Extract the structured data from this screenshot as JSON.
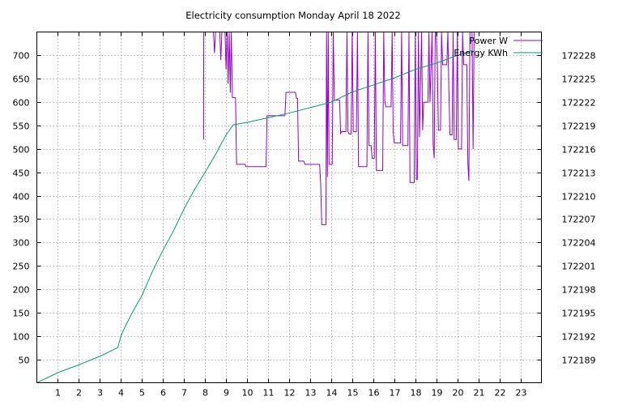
{
  "chart_data": {
    "type": "line",
    "title": "Electricity consumption Monday April 18 2022",
    "xlabel": "",
    "ylabel": "",
    "y2label": "",
    "xlim": [
      0,
      24
    ],
    "ylim": [
      0,
      750
    ],
    "y2lim": [
      172186,
      172231
    ],
    "x_ticks": [
      1,
      2,
      3,
      4,
      5,
      6,
      7,
      8,
      9,
      10,
      11,
      12,
      13,
      14,
      15,
      16,
      17,
      18,
      19,
      20,
      21,
      22,
      23
    ],
    "y_ticks": [
      50,
      100,
      150,
      200,
      250,
      300,
      350,
      400,
      450,
      500,
      550,
      600,
      650,
      700
    ],
    "y2_ticks": [
      172189,
      172192,
      172195,
      172198,
      172201,
      172204,
      172207,
      172210,
      172213,
      172216,
      172219,
      172222,
      172225,
      172228
    ],
    "grid": true,
    "legend_position": "top-right",
    "series": [
      {
        "name": "Power W",
        "axis": "y",
        "color": "#9400d3",
        "points": [
          [
            7.93,
            520
          ],
          [
            7.94,
            750
          ],
          [
            7.96,
            750
          ],
          [
            8.4,
            750
          ],
          [
            8.45,
            705
          ],
          [
            8.5,
            750
          ],
          [
            8.7,
            750
          ],
          [
            8.75,
            690
          ],
          [
            8.8,
            750
          ],
          [
            8.95,
            750
          ],
          [
            9.0,
            670
          ],
          [
            9.05,
            750
          ],
          [
            9.1,
            640
          ],
          [
            9.15,
            750
          ],
          [
            9.2,
            620
          ],
          [
            9.25,
            750
          ],
          [
            9.3,
            610
          ],
          [
            9.45,
            610
          ],
          [
            9.5,
            467
          ],
          [
            9.9,
            467
          ],
          [
            9.95,
            462
          ],
          [
            10.9,
            462
          ],
          [
            10.95,
            571
          ],
          [
            11.8,
            571
          ],
          [
            11.85,
            621
          ],
          [
            12.3,
            621
          ],
          [
            12.35,
            608
          ],
          [
            12.4,
            608
          ],
          [
            12.45,
            474
          ],
          [
            12.7,
            474
          ],
          [
            12.75,
            467
          ],
          [
            13.45,
            467
          ],
          [
            13.5,
            425
          ],
          [
            13.55,
            338
          ],
          [
            13.75,
            338
          ],
          [
            13.78,
            750
          ],
          [
            13.82,
            440
          ],
          [
            13.86,
            750
          ],
          [
            13.9,
            467
          ],
          [
            14.05,
            467
          ],
          [
            14.1,
            750
          ],
          [
            14.15,
            604
          ],
          [
            14.4,
            604
          ],
          [
            14.45,
            533
          ],
          [
            14.5,
            537
          ],
          [
            14.7,
            537
          ],
          [
            14.75,
            750
          ],
          [
            14.8,
            537
          ],
          [
            14.85,
            532
          ],
          [
            14.95,
            532
          ],
          [
            15.0,
            750
          ],
          [
            15.05,
            537
          ],
          [
            15.2,
            537
          ],
          [
            15.25,
            750
          ],
          [
            15.3,
            462
          ],
          [
            15.7,
            462
          ],
          [
            15.75,
            750
          ],
          [
            15.8,
            507
          ],
          [
            15.9,
            507
          ],
          [
            15.95,
            480
          ],
          [
            16.05,
            480
          ],
          [
            16.1,
            750
          ],
          [
            16.15,
            454
          ],
          [
            16.45,
            454
          ],
          [
            16.5,
            750
          ],
          [
            16.55,
            603
          ],
          [
            16.6,
            590
          ],
          [
            16.85,
            590
          ],
          [
            16.9,
            750
          ],
          [
            16.95,
            535
          ],
          [
            17.0,
            513
          ],
          [
            17.3,
            513
          ],
          [
            17.35,
            750
          ],
          [
            17.4,
            507
          ],
          [
            17.65,
            507
          ],
          [
            17.7,
            750
          ],
          [
            17.75,
            428
          ],
          [
            17.95,
            428
          ],
          [
            18.0,
            750
          ],
          [
            18.05,
            435
          ],
          [
            18.1,
            435
          ],
          [
            18.15,
            750
          ],
          [
            18.2,
            525
          ],
          [
            18.3,
            750
          ],
          [
            18.35,
            540
          ],
          [
            18.4,
            600
          ],
          [
            18.6,
            600
          ],
          [
            18.65,
            750
          ],
          [
            18.7,
            600
          ],
          [
            18.8,
            750
          ],
          [
            18.85,
            510
          ],
          [
            18.9,
            480
          ],
          [
            18.95,
            750
          ],
          [
            19.0,
            750
          ],
          [
            19.05,
            680
          ],
          [
            19.1,
            540
          ],
          [
            19.2,
            540
          ],
          [
            19.25,
            750
          ],
          [
            19.3,
            680
          ],
          [
            19.5,
            680
          ],
          [
            19.55,
            750
          ],
          [
            19.6,
            620
          ],
          [
            19.65,
            530
          ],
          [
            19.75,
            530
          ],
          [
            19.8,
            750
          ],
          [
            19.85,
            520
          ],
          [
            19.95,
            520
          ],
          [
            20.0,
            750
          ],
          [
            20.05,
            500
          ],
          [
            20.2,
            500
          ],
          [
            20.25,
            750
          ],
          [
            20.3,
            680
          ],
          [
            20.45,
            680
          ],
          [
            20.5,
            470
          ],
          [
            20.55,
            432
          ],
          [
            20.6,
            750
          ],
          [
            20.7,
            750
          ],
          [
            20.75,
            500
          ],
          [
            20.8,
            750
          ]
        ]
      },
      {
        "name": "Energy KWh",
        "axis": "y2",
        "color": "#009e73",
        "points": [
          [
            0.0,
            172186.0
          ],
          [
            1.0,
            172187.3
          ],
          [
            2.0,
            172188.3
          ],
          [
            3.0,
            172189.4
          ],
          [
            3.85,
            172190.5
          ],
          [
            4.0,
            172192.0
          ],
          [
            4.2,
            172193.2
          ],
          [
            4.5,
            172194.8
          ],
          [
            5.0,
            172197.2
          ],
          [
            5.5,
            172200.3
          ],
          [
            6.0,
            172203.0
          ],
          [
            6.5,
            172205.5
          ],
          [
            7.0,
            172208.3
          ],
          [
            7.5,
            172210.8
          ],
          [
            8.0,
            172213.0
          ],
          [
            8.5,
            172215.3
          ],
          [
            9.0,
            172217.8
          ],
          [
            9.35,
            172219.1
          ],
          [
            10.0,
            172219.4
          ],
          [
            11.0,
            172220.0
          ],
          [
            12.0,
            172220.6
          ],
          [
            13.0,
            172221.3
          ],
          [
            14.0,
            172222.0
          ],
          [
            15.0,
            172223.3
          ],
          [
            16.0,
            172224.2
          ],
          [
            17.0,
            172225.1
          ],
          [
            18.0,
            172226.2
          ],
          [
            19.0,
            172227.0
          ],
          [
            20.0,
            172228.0
          ],
          [
            20.7,
            172228.6
          ]
        ]
      }
    ]
  }
}
